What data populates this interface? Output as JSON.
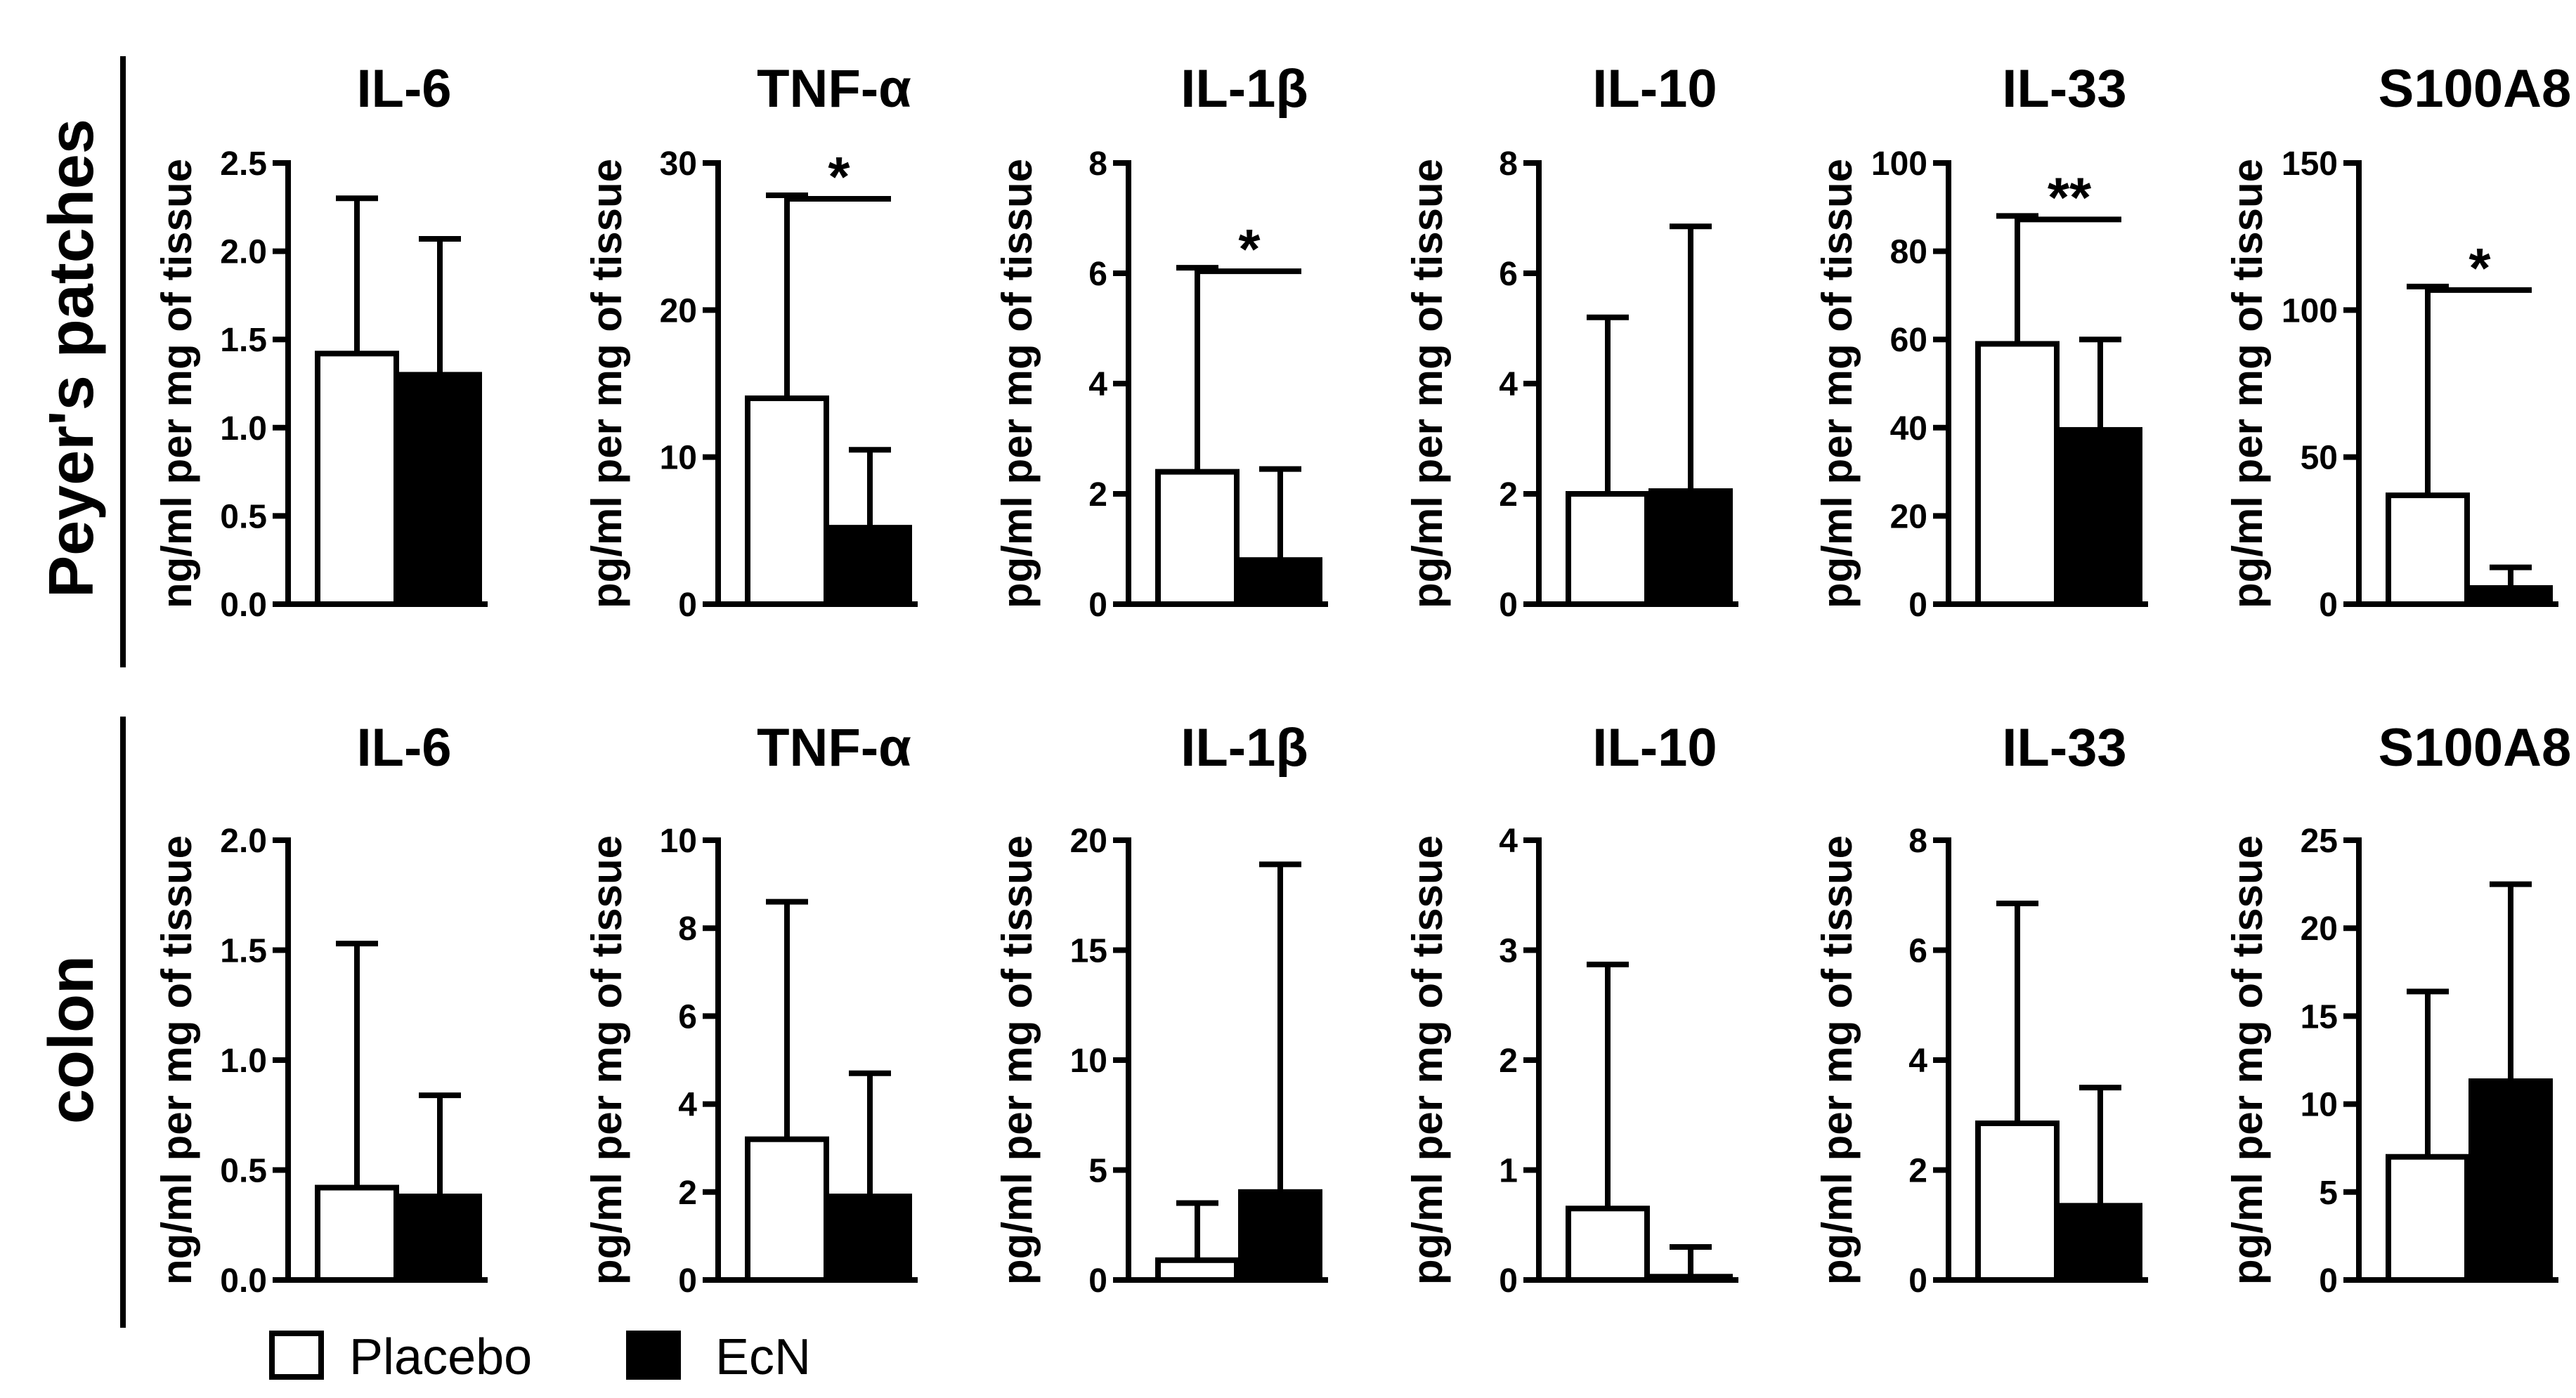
{
  "legend": {
    "placebo_label": "Placebo",
    "ecn_label": "EcN"
  },
  "colors": {
    "placebo_fill": "#ffffff",
    "ecn_fill": "#000000",
    "stroke": "#000000"
  },
  "rows": [
    {
      "label": "Peyer's patches"
    },
    {
      "label": "colon"
    }
  ],
  "chart_data": [
    {
      "type": "bar",
      "row": "Peyer's patches",
      "title": "IL-6",
      "ylabel": "ng/ml per mg of tissue",
      "categories": [
        "Placebo",
        "EcN"
      ],
      "ylim": [
        0,
        2.5
      ],
      "ticks": [
        0,
        0.5,
        1.0,
        1.5,
        2.0,
        2.5
      ],
      "tick_labels": [
        "0.0",
        "0.5",
        "1.0",
        "1.5",
        "2.0",
        "2.5"
      ],
      "values": [
        1.42,
        1.3
      ],
      "errors_upper": [
        2.3,
        2.07
      ],
      "significance": null
    },
    {
      "type": "bar",
      "row": "Peyer's patches",
      "title": "TNF-α",
      "ylabel": "pg/ml per mg of tissue",
      "categories": [
        "Placebo",
        "EcN"
      ],
      "ylim": [
        0,
        30
      ],
      "ticks": [
        0,
        10,
        20,
        30
      ],
      "tick_labels": [
        "0",
        "10",
        "20",
        "30"
      ],
      "values": [
        14.0,
        5.2
      ],
      "errors_upper": [
        27.8,
        10.5
      ],
      "significance": "*"
    },
    {
      "type": "bar",
      "row": "Peyer's patches",
      "title": "IL-1β",
      "ylabel": "pg/ml per mg of tissue",
      "categories": [
        "Placebo",
        "EcN"
      ],
      "ylim": [
        0,
        8
      ],
      "ticks": [
        0,
        2,
        4,
        6,
        8
      ],
      "tick_labels": [
        "0",
        "2",
        "4",
        "6",
        "8"
      ],
      "values": [
        2.4,
        0.8
      ],
      "errors_upper": [
        6.1,
        2.45
      ],
      "significance": "*"
    },
    {
      "type": "bar",
      "row": "Peyer's patches",
      "title": "IL-10",
      "ylabel": "pg/ml per mg of tissue",
      "categories": [
        "Placebo",
        "EcN"
      ],
      "ylim": [
        0,
        8
      ],
      "ticks": [
        0,
        2,
        4,
        6,
        8
      ],
      "tick_labels": [
        "0",
        "2",
        "4",
        "6",
        "8"
      ],
      "values": [
        2.0,
        2.05
      ],
      "errors_upper": [
        5.2,
        6.85
      ],
      "significance": null
    },
    {
      "type": "bar",
      "row": "Peyer's patches",
      "title": "IL-33",
      "ylabel": "pg/ml per mg of tissue",
      "categories": [
        "Placebo",
        "EcN"
      ],
      "ylim": [
        0,
        100
      ],
      "ticks": [
        0,
        20,
        40,
        60,
        80,
        100
      ],
      "tick_labels": [
        "0",
        "20",
        "40",
        "60",
        "80",
        "100"
      ],
      "values": [
        59,
        39.5
      ],
      "errors_upper": [
        88,
        60
      ],
      "significance": "**"
    },
    {
      "type": "bar",
      "row": "Peyer's patches",
      "title": "S100A8",
      "ylabel": "pg/ml per mg of tissue",
      "categories": [
        "Placebo",
        "EcN"
      ],
      "ylim": [
        0,
        150
      ],
      "ticks": [
        0,
        50,
        100,
        150
      ],
      "tick_labels": [
        "0",
        "50",
        "100",
        "150"
      ],
      "values": [
        37,
        5.5
      ],
      "errors_upper": [
        108,
        12.5
      ],
      "significance": "*"
    },
    {
      "type": "bar",
      "row": "colon",
      "title": "IL-6",
      "ylabel": "ng/ml per mg of tissue",
      "categories": [
        "Placebo",
        "EcN"
      ],
      "ylim": [
        0,
        2.0
      ],
      "ticks": [
        0,
        0.5,
        1.0,
        1.5,
        2.0
      ],
      "tick_labels": [
        "0.0",
        "0.5",
        "1.0",
        "1.5",
        "2.0"
      ],
      "values": [
        0.42,
        0.38
      ],
      "errors_upper": [
        1.53,
        0.84
      ],
      "significance": null
    },
    {
      "type": "bar",
      "row": "colon",
      "title": "TNF-α",
      "ylabel": "pg/ml per mg of tissue",
      "categories": [
        "Placebo",
        "EcN"
      ],
      "ylim": [
        0,
        10
      ],
      "ticks": [
        0,
        2,
        4,
        6,
        8,
        10
      ],
      "tick_labels": [
        "0",
        "2",
        "4",
        "6",
        "8",
        "10"
      ],
      "values": [
        3.2,
        1.9
      ],
      "errors_upper": [
        8.6,
        4.7
      ],
      "significance": null
    },
    {
      "type": "bar",
      "row": "colon",
      "title": "IL-1β",
      "ylabel": "pg/ml per mg of tissue",
      "categories": [
        "Placebo",
        "EcN"
      ],
      "ylim": [
        0,
        20
      ],
      "ticks": [
        0,
        5,
        10,
        15,
        20
      ],
      "tick_labels": [
        "0",
        "5",
        "10",
        "15",
        "20"
      ],
      "values": [
        0.9,
        4.0
      ],
      "errors_upper": [
        3.5,
        18.9
      ],
      "significance": null
    },
    {
      "type": "bar",
      "row": "colon",
      "title": "IL-10",
      "ylabel": "pg/ml per mg of tissue",
      "categories": [
        "Placebo",
        "EcN"
      ],
      "ylim": [
        0,
        4
      ],
      "ticks": [
        0,
        1,
        2,
        3,
        4
      ],
      "tick_labels": [
        "0",
        "1",
        "2",
        "3",
        "4"
      ],
      "values": [
        0.65,
        0.03
      ],
      "errors_upper": [
        2.87,
        0.3
      ],
      "significance": null
    },
    {
      "type": "bar",
      "row": "colon",
      "title": "IL-33",
      "ylabel": "pg/ml per mg of tissue",
      "categories": [
        "Placebo",
        "EcN"
      ],
      "ylim": [
        0,
        8
      ],
      "ticks": [
        0,
        2,
        4,
        6,
        8
      ],
      "tick_labels": [
        "0",
        "2",
        "4",
        "6",
        "8"
      ],
      "values": [
        2.85,
        1.35
      ],
      "errors_upper": [
        6.85,
        3.5
      ],
      "significance": null
    },
    {
      "type": "bar",
      "row": "colon",
      "title": "S100A8",
      "ylabel": "pg/ml per mg of tissue",
      "categories": [
        "Placebo",
        "EcN"
      ],
      "ylim": [
        0,
        25
      ],
      "ticks": [
        0,
        5,
        10,
        15,
        20,
        25
      ],
      "tick_labels": [
        "0",
        "5",
        "10",
        "15",
        "20",
        "25"
      ],
      "values": [
        7.0,
        11.3
      ],
      "errors_upper": [
        16.4,
        22.5
      ],
      "significance": null
    }
  ]
}
